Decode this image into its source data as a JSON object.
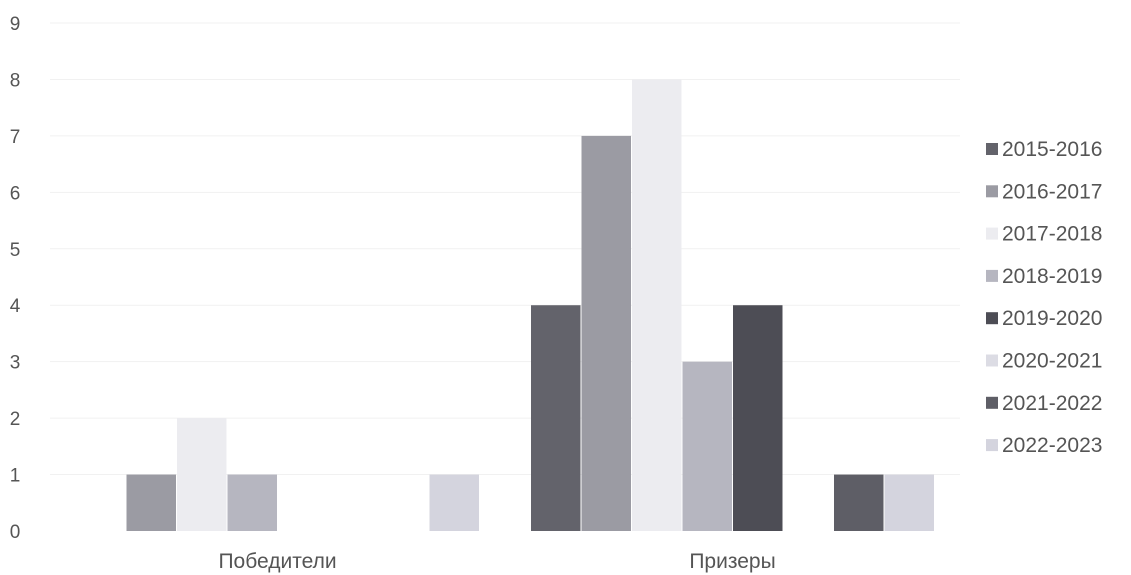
{
  "chart_data": {
    "type": "bar",
    "title": "",
    "xlabel": "",
    "ylabel": "",
    "categories": [
      "Победители",
      "Призеры"
    ],
    "ylim": [
      0,
      9
    ],
    "yticks": [
      0,
      1,
      2,
      3,
      4,
      5,
      6,
      7,
      8,
      9
    ],
    "grid": true,
    "legend": "right",
    "series": [
      {
        "name": "2015-2016",
        "color": "#63636b",
        "values": [
          0,
          4
        ]
      },
      {
        "name": "2016-2017",
        "color": "#9b9ba3",
        "values": [
          1,
          7
        ]
      },
      {
        "name": "2017-2018",
        "color": "#ececf0",
        "values": [
          2,
          8
        ]
      },
      {
        "name": "2018-2019",
        "color": "#b6b6c0",
        "values": [
          1,
          3
        ]
      },
      {
        "name": "2019-2020",
        "color": "#4d4d55",
        "values": [
          0,
          4
        ]
      },
      {
        "name": "2020-2021",
        "color": "#dcdce4",
        "values": [
          0,
          0
        ]
      },
      {
        "name": "2021-2022",
        "color": "#5e5e66",
        "values": [
          0,
          1
        ]
      },
      {
        "name": "2022-2023",
        "color": "#d4d4de",
        "values": [
          1,
          1
        ]
      }
    ]
  }
}
